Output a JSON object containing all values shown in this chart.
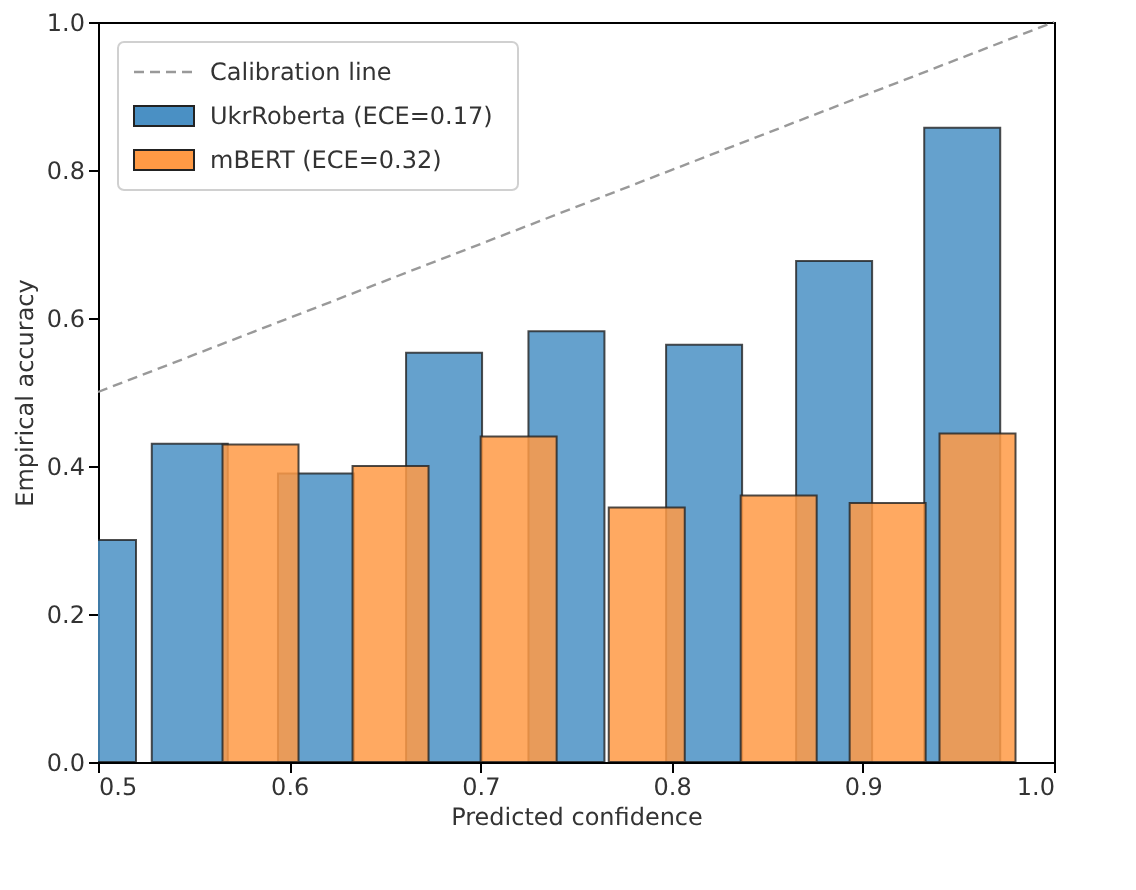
{
  "chart_data": {
    "type": "bar",
    "xlabel": "Predicted confidence",
    "ylabel": "Empirical accuracy",
    "xlim": [
      0.5,
      1.0
    ],
    "ylim": [
      0.0,
      1.0
    ],
    "xticks": [
      0.5,
      0.6,
      0.7,
      0.8,
      0.9,
      {
        "value": 1.0,
        "label": "1.0"
      }
    ],
    "yticks": [
      {
        "value": 0.0,
        "label": "0.0"
      },
      0.2,
      0.4,
      0.6,
      0.8,
      {
        "value": 1.0,
        "label": "1.0"
      }
    ],
    "grid": false,
    "legend": "top left",
    "series": [
      {
        "name": "Calibration line",
        "type": "line",
        "line_style": "dashed",
        "color": "#999999",
        "x": [
          0.5,
          1.0
        ],
        "values": [
          0.5,
          1.0
        ]
      },
      {
        "name": "UkrRoberta (ECE=0.17)",
        "color": "#4a90c4",
        "x": [
          0.5,
          0.548,
          0.614,
          0.681,
          0.745,
          0.817,
          0.885,
          0.952
        ],
        "values": [
          0.3,
          0.43,
          0.39,
          0.553,
          0.582,
          0.564,
          0.677,
          0.857
        ]
      },
      {
        "name": "mBERT (ECE=0.32)",
        "color": "#ff9a45",
        "x": [
          0.585,
          0.653,
          0.72,
          0.787,
          0.856,
          0.913,
          0.96
        ],
        "values": [
          0.429,
          0.4,
          0.44,
          0.344,
          0.36,
          0.35,
          0.444
        ]
      }
    ]
  }
}
